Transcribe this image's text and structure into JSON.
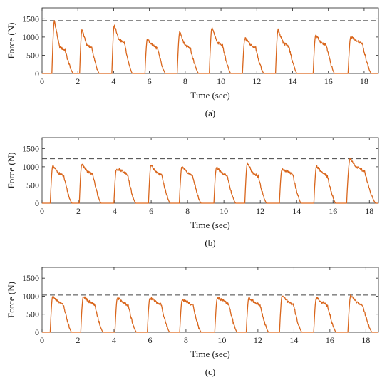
{
  "chart_data": [
    {
      "type": "line",
      "caption": "(a)",
      "xlabel": "Time (sec)",
      "ylabel": "Force (N)",
      "xlim": [
        0,
        18.8
      ],
      "ylim": [
        0,
        1800
      ],
      "xticks": [
        0,
        2,
        4,
        6,
        8,
        10,
        12,
        14,
        16,
        18
      ],
      "yticks": [
        0,
        500,
        1000,
        1500
      ],
      "reference_line": 1450,
      "color": "#d9661c",
      "ref_color": "#444444",
      "pulses": [
        {
          "start": 0.55,
          "end": 1.75,
          "peak": 1450,
          "plateau": 650
        },
        {
          "start": 2.1,
          "end": 3.2,
          "peak": 1200,
          "plateau": 720
        },
        {
          "start": 3.9,
          "end": 5.05,
          "peak": 1330,
          "plateau": 850
        },
        {
          "start": 5.75,
          "end": 6.9,
          "peak": 950,
          "plateau": 700
        },
        {
          "start": 7.55,
          "end": 8.75,
          "peak": 1130,
          "plateau": 700
        },
        {
          "start": 9.35,
          "end": 10.55,
          "peak": 1260,
          "plateau": 780
        },
        {
          "start": 11.2,
          "end": 12.4,
          "peak": 970,
          "plateau": 720
        },
        {
          "start": 13.05,
          "end": 14.25,
          "peak": 1200,
          "plateau": 760
        },
        {
          "start": 15.15,
          "end": 16.35,
          "peak": 1050,
          "plateau": 780
        },
        {
          "start": 17.1,
          "end": 18.4,
          "peak": 1010,
          "plateau": 820
        }
      ]
    },
    {
      "type": "line",
      "caption": "(b)",
      "xlabel": "Time (sec)",
      "ylabel": "Force (N)",
      "xlim": [
        0,
        18.5
      ],
      "ylim": [
        0,
        1800
      ],
      "xticks": [
        0,
        2,
        4,
        6,
        8,
        10,
        12,
        14,
        16,
        18
      ],
      "yticks": [
        0,
        500,
        1000,
        1500
      ],
      "reference_line": 1220,
      "color": "#d9661c",
      "ref_color": "#444444",
      "pulses": [
        {
          "start": 0.45,
          "end": 1.65,
          "peak": 1020,
          "plateau": 760
        },
        {
          "start": 2.05,
          "end": 3.25,
          "peak": 1090,
          "plateau": 800
        },
        {
          "start": 3.95,
          "end": 5.15,
          "peak": 940,
          "plateau": 820
        },
        {
          "start": 5.85,
          "end": 7.05,
          "peak": 1060,
          "plateau": 780
        },
        {
          "start": 7.55,
          "end": 8.75,
          "peak": 1020,
          "plateau": 760
        },
        {
          "start": 9.45,
          "end": 10.65,
          "peak": 980,
          "plateau": 760
        },
        {
          "start": 11.15,
          "end": 12.35,
          "peak": 1090,
          "plateau": 760
        },
        {
          "start": 13.05,
          "end": 14.25,
          "peak": 920,
          "plateau": 800
        },
        {
          "start": 14.95,
          "end": 16.15,
          "peak": 1020,
          "plateau": 760
        },
        {
          "start": 16.75,
          "end": 18.35,
          "peak": 1230,
          "plateau": 900
        }
      ]
    },
    {
      "type": "line",
      "caption": "(c)",
      "xlabel": "Time (sec)",
      "ylabel": "Force (N)",
      "xlim": [
        0,
        18.7
      ],
      "ylim": [
        0,
        1800
      ],
      "xticks": [
        0,
        2,
        4,
        6,
        8,
        10,
        12,
        14,
        16,
        18
      ],
      "yticks": [
        0,
        500,
        1000,
        1500
      ],
      "reference_line": 1030,
      "color": "#d9661c",
      "ref_color": "#444444",
      "pulses": [
        {
          "start": 0.45,
          "end": 1.65,
          "peak": 1000,
          "plateau": 780
        },
        {
          "start": 2.15,
          "end": 3.4,
          "peak": 1000,
          "plateau": 780
        },
        {
          "start": 4.05,
          "end": 5.25,
          "peak": 960,
          "plateau": 760
        },
        {
          "start": 5.85,
          "end": 7.1,
          "peak": 960,
          "plateau": 780
        },
        {
          "start": 7.65,
          "end": 8.85,
          "peak": 900,
          "plateau": 760
        },
        {
          "start": 9.6,
          "end": 10.85,
          "peak": 960,
          "plateau": 800
        },
        {
          "start": 11.35,
          "end": 12.6,
          "peak": 960,
          "plateau": 760
        },
        {
          "start": 13.2,
          "end": 14.45,
          "peak": 1020,
          "plateau": 780
        },
        {
          "start": 15.1,
          "end": 16.35,
          "peak": 960,
          "plateau": 760
        },
        {
          "start": 17.0,
          "end": 18.35,
          "peak": 1020,
          "plateau": 760
        }
      ]
    }
  ]
}
